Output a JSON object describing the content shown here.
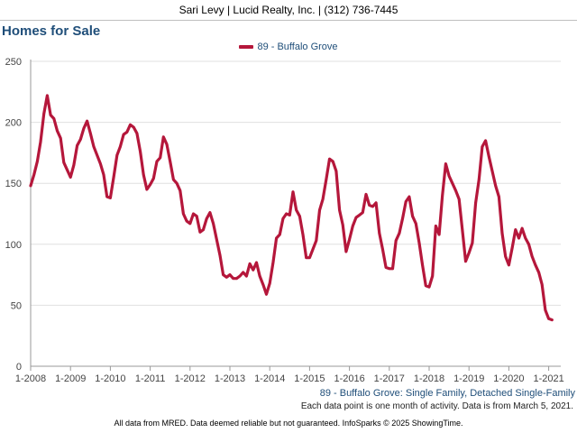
{
  "header": {
    "text": "Sari Levy | Lucid Realty, Inc. | (312) 736-7445"
  },
  "colors": {
    "series": "#b5173b",
    "title": "#1f4e79",
    "grid": "#e0e0e0"
  },
  "chart_data": {
    "type": "line",
    "title": "Homes for Sale",
    "legend_position": "top-center",
    "grid": true,
    "ylim": [
      0,
      250
    ],
    "yticks": [
      0,
      50,
      100,
      150,
      200,
      250
    ],
    "xticks": [
      "1-2008",
      "1-2009",
      "1-2010",
      "1-2011",
      "1-2012",
      "1-2013",
      "1-2014",
      "1-2015",
      "1-2016",
      "1-2017",
      "1-2018",
      "1-2019",
      "1-2020",
      "1-2021"
    ],
    "x_start": "1-2008",
    "x_end": "3-2021",
    "series": [
      {
        "name": "89 - Buffalo Grove",
        "values": [
          148,
          157,
          168,
          184,
          207,
          222,
          206,
          203,
          193,
          187,
          167,
          161,
          155,
          165,
          181,
          186,
          195,
          201,
          191,
          180,
          173,
          166,
          157,
          139,
          138,
          155,
          173,
          180,
          190,
          192,
          198,
          196,
          191,
          176,
          157,
          145,
          149,
          154,
          168,
          171,
          188,
          182,
          168,
          153,
          150,
          144,
          125,
          119,
          117,
          125,
          123,
          110,
          112,
          121,
          126,
          117,
          104,
          91,
          75,
          73,
          75,
          72,
          72,
          74,
          77,
          74,
          84,
          79,
          85,
          74,
          67,
          59,
          68,
          85,
          105,
          108,
          121,
          125,
          124,
          143,
          128,
          123,
          108,
          89,
          89,
          96,
          103,
          128,
          137,
          153,
          170,
          168,
          160,
          128,
          116,
          94,
          104,
          115,
          122,
          124,
          126,
          141,
          132,
          131,
          134,
          109,
          96,
          81,
          80,
          80,
          103,
          109,
          121,
          135,
          139,
          123,
          117,
          101,
          83,
          66,
          65,
          74,
          115,
          108,
          140,
          166,
          156,
          150,
          144,
          137,
          112,
          86,
          93,
          101,
          134,
          153,
          180,
          185,
          172,
          160,
          148,
          139,
          109,
          90,
          83,
          97,
          112,
          105,
          113,
          105,
          100,
          90,
          83,
          77,
          67,
          46,
          39,
          38
        ]
      }
    ]
  },
  "series_caption": "89 - Buffalo Grove: Single Family, Detached Single-Family",
  "note": "Each data point is one month of activity. Data is from March 5, 2021.",
  "footer": "All data from MRED. Data deemed reliable but not guaranteed. InfoSparks © 2025 ShowingTime."
}
